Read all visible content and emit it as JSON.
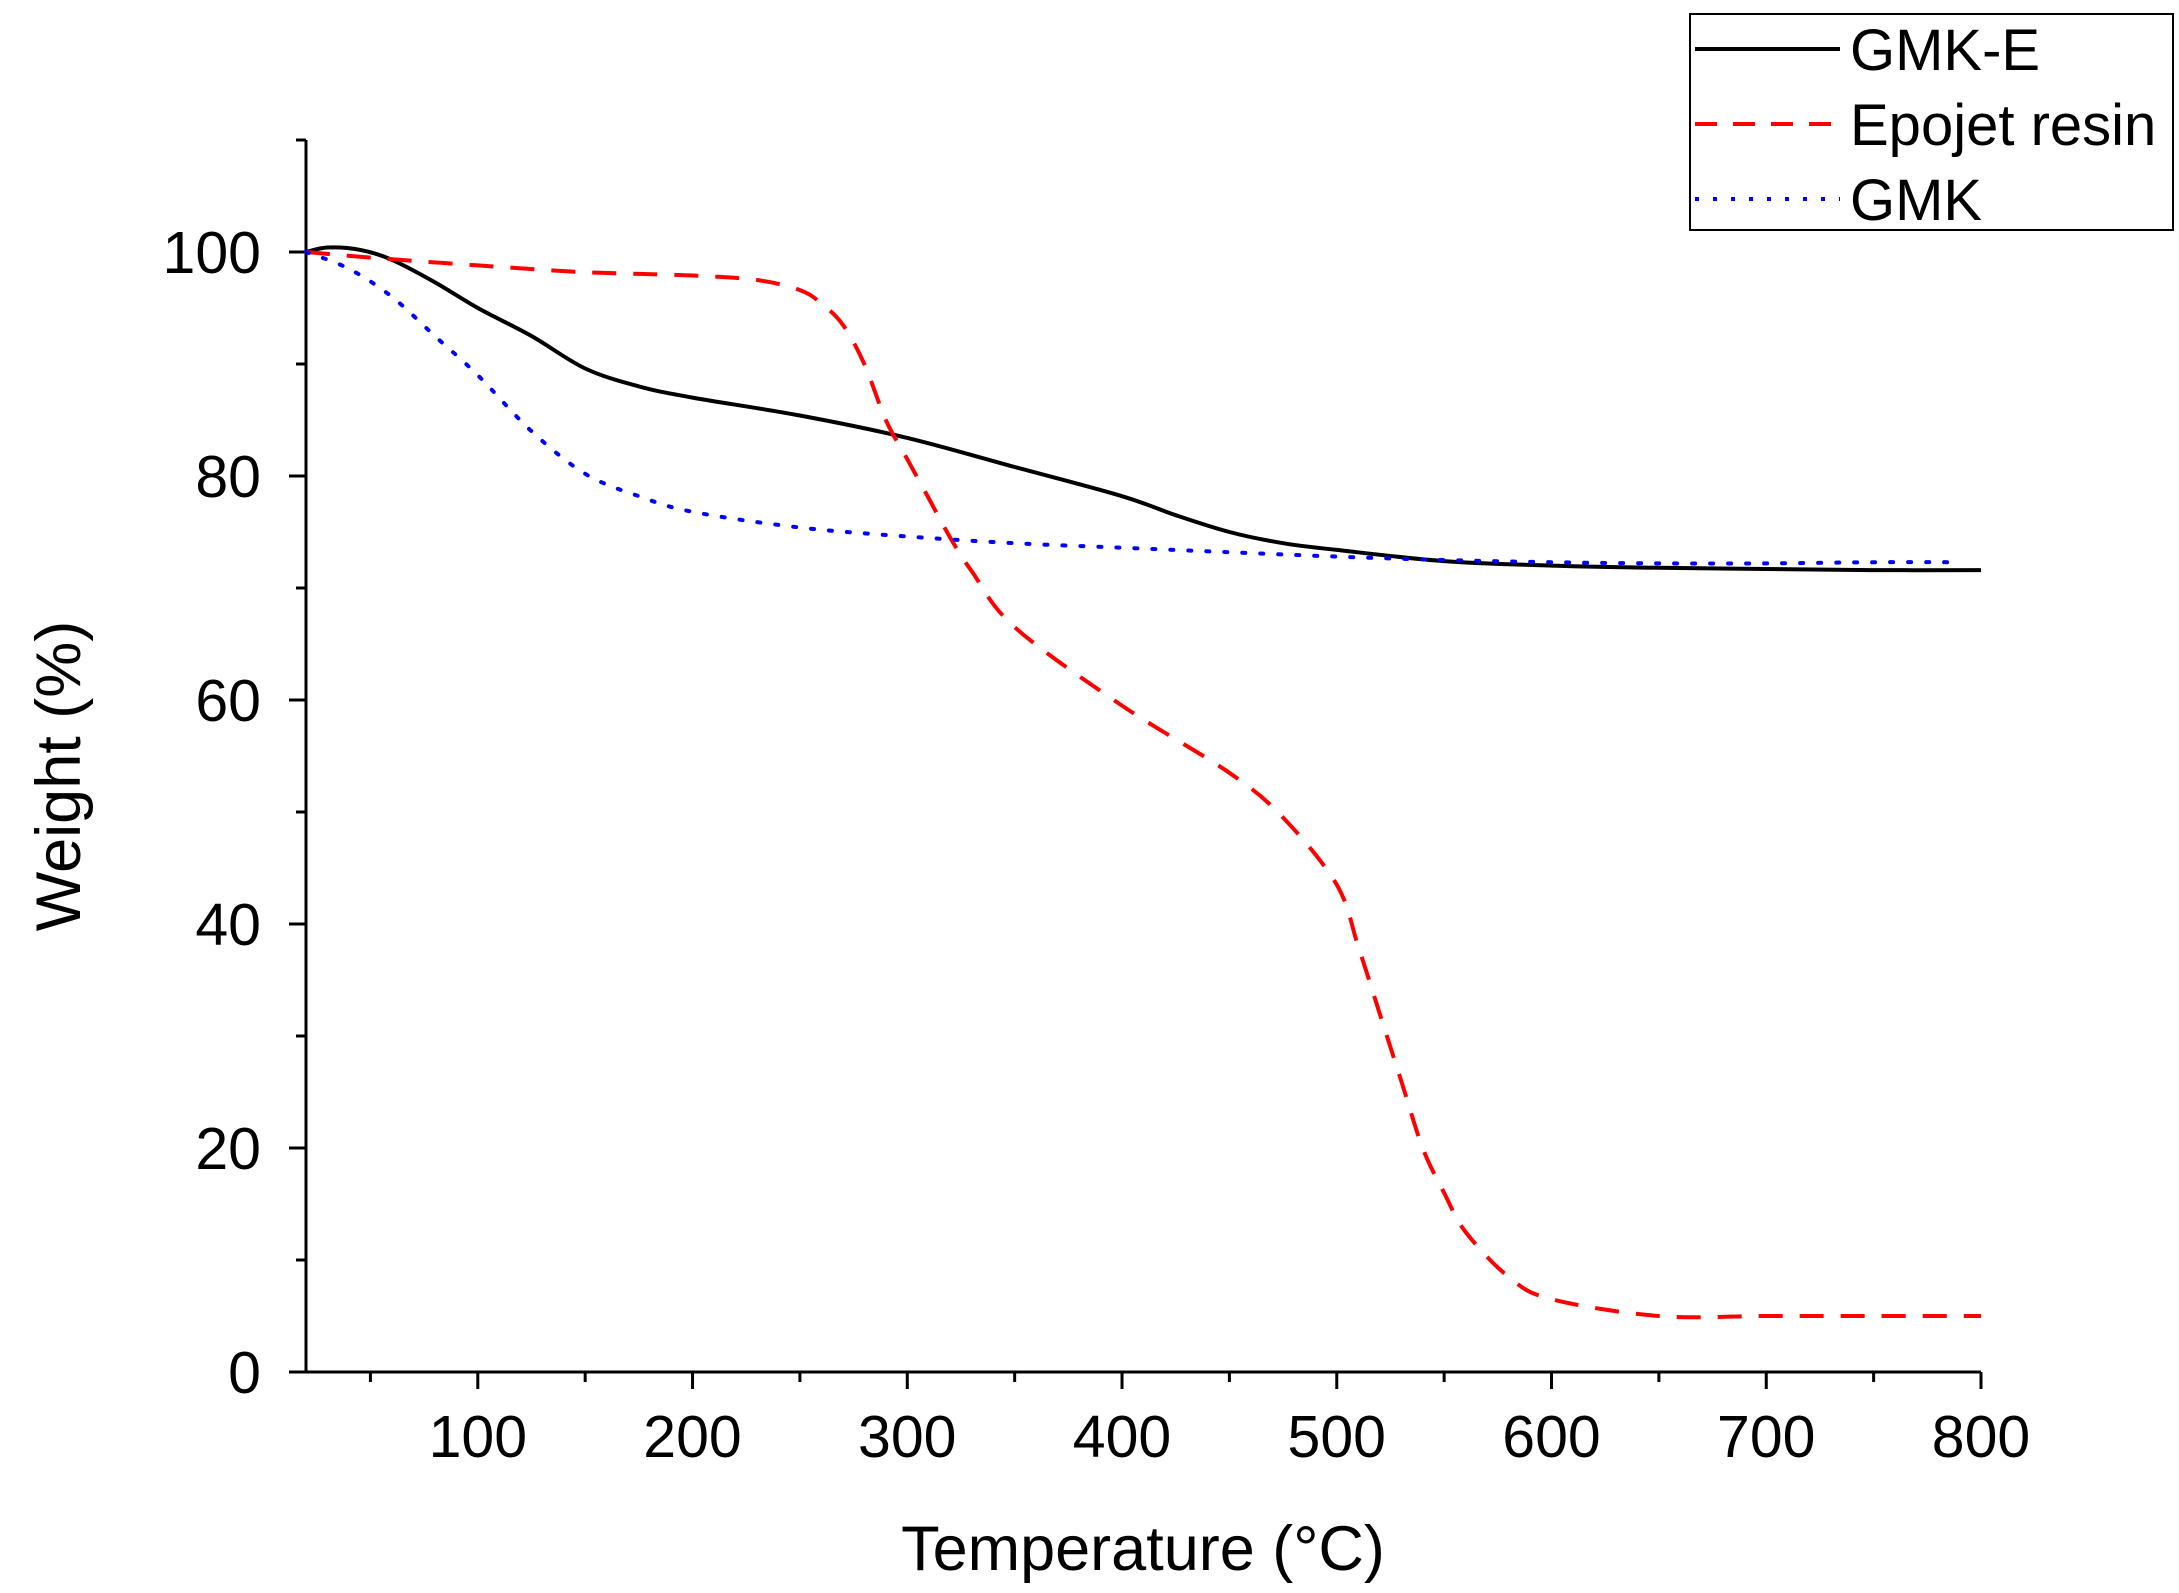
{
  "chart_data": {
    "type": "line",
    "title": "",
    "xlabel": "Temperature (°C)",
    "ylabel": "Weight (%)",
    "xlim": [
      20,
      800
    ],
    "ylim": [
      0,
      110
    ],
    "xticks": [
      100,
      200,
      300,
      400,
      500,
      600,
      700,
      800
    ],
    "yticks": [
      0,
      20,
      40,
      60,
      80,
      100
    ],
    "xtick_labels": [
      "100",
      "200",
      "300",
      "400",
      "500",
      "600",
      "700",
      "800"
    ],
    "ytick_labels": [
      "0",
      "20",
      "40",
      "60",
      "80",
      "100"
    ],
    "grid": false,
    "legend_position": "top-right",
    "series": [
      {
        "name": "GMK-E",
        "color": "#000000",
        "style": "solid",
        "x": [
          20,
          30,
          45,
          60,
          80,
          100,
          125,
          150,
          175,
          200,
          250,
          300,
          350,
          400,
          425,
          450,
          475,
          500,
          550,
          600,
          650,
          700,
          750,
          800
        ],
        "y": [
          100,
          100.4,
          100.2,
          99.3,
          97.3,
          95,
          92.5,
          89.6,
          88,
          87,
          85.4,
          83.4,
          80.8,
          78.2,
          76.5,
          75,
          74,
          73.4,
          72.4,
          72,
          71.8,
          71.7,
          71.6,
          71.6
        ]
      },
      {
        "name": "Epojet resin",
        "color": "#ff0000",
        "style": "dashed",
        "x": [
          20,
          50,
          100,
          150,
          200,
          230,
          250,
          260,
          270,
          280,
          290,
          300,
          310,
          320,
          330,
          350,
          400,
          450,
          475,
          500,
          510,
          520,
          530,
          540,
          550,
          560,
          580,
          600,
          650,
          700,
          750,
          800
        ],
        "y": [
          100,
          99.5,
          98.8,
          98.2,
          97.9,
          97.5,
          96.6,
          95.4,
          93.5,
          90,
          85,
          81.5,
          78,
          74.5,
          71.5,
          66.5,
          59.5,
          53.5,
          49.5,
          43.5,
          38,
          32,
          26,
          20,
          16,
          12.5,
          8.5,
          6.5,
          5,
          5,
          5,
          5
        ]
      },
      {
        "name": "GMK",
        "color": "#0000ff",
        "style": "dotted",
        "x": [
          20,
          40,
          60,
          80,
          100,
          125,
          150,
          175,
          200,
          250,
          300,
          350,
          400,
          450,
          500,
          550,
          600,
          650,
          700,
          750,
          790
        ],
        "y": [
          100,
          98.5,
          96,
          92.5,
          89,
          84,
          80.2,
          78.2,
          76.8,
          75.4,
          74.6,
          74,
          73.6,
          73.2,
          72.8,
          72.5,
          72.3,
          72.2,
          72.2,
          72.3,
          72.3
        ]
      }
    ]
  }
}
